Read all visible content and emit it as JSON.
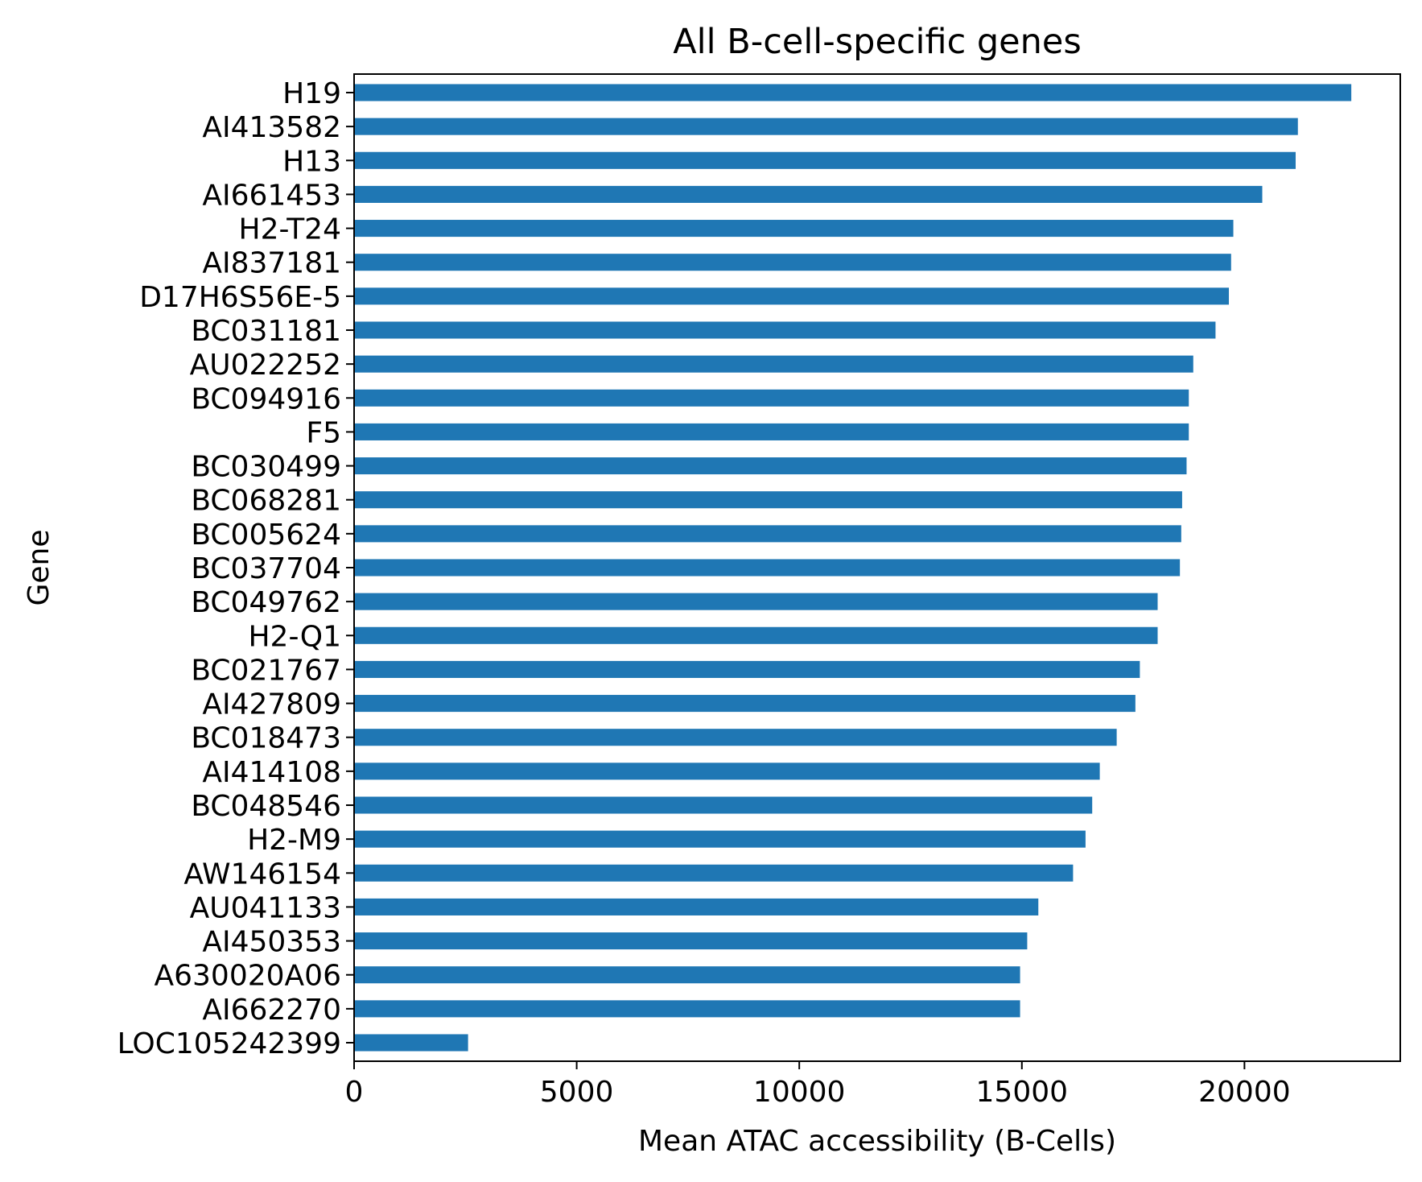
{
  "chart_data": {
    "type": "bar",
    "orientation": "horizontal",
    "title": "All B-cell-specific genes",
    "xlabel": "Mean ATAC accessibility (B-Cells)",
    "ylabel": "Gene",
    "xlim": [
      0,
      23500
    ],
    "xticks": [
      0,
      5000,
      10000,
      15000,
      20000
    ],
    "xtick_labels": [
      "0",
      "5000",
      "10000",
      "15000",
      "20000"
    ],
    "grid": false,
    "legend": null,
    "bar_color": "#1f77b4",
    "categories": [
      "H19",
      "AI413582",
      "H13",
      "AI661453",
      "H2-T24",
      "AI837181",
      "D17H6S56E-5",
      "BC031181",
      "AU022252",
      "BC094916",
      "F5",
      "BC030499",
      "BC068281",
      "BC005624",
      "BC037704",
      "BC049762",
      "H2-Q1",
      "BC021767",
      "AI427809",
      "BC018473",
      "AI414108",
      "BC048546",
      "H2-M9",
      "AW146154",
      "AU041133",
      "AI450353",
      "A630020A06",
      "AI662270",
      "LOC105242399"
    ],
    "values": [
      22400,
      21200,
      21150,
      20400,
      19750,
      19700,
      19650,
      19350,
      18850,
      18750,
      18750,
      18700,
      18600,
      18580,
      18550,
      18050,
      18050,
      17650,
      17550,
      17130,
      16750,
      16580,
      16430,
      16150,
      15370,
      15120,
      14960,
      14960,
      2560
    ]
  }
}
